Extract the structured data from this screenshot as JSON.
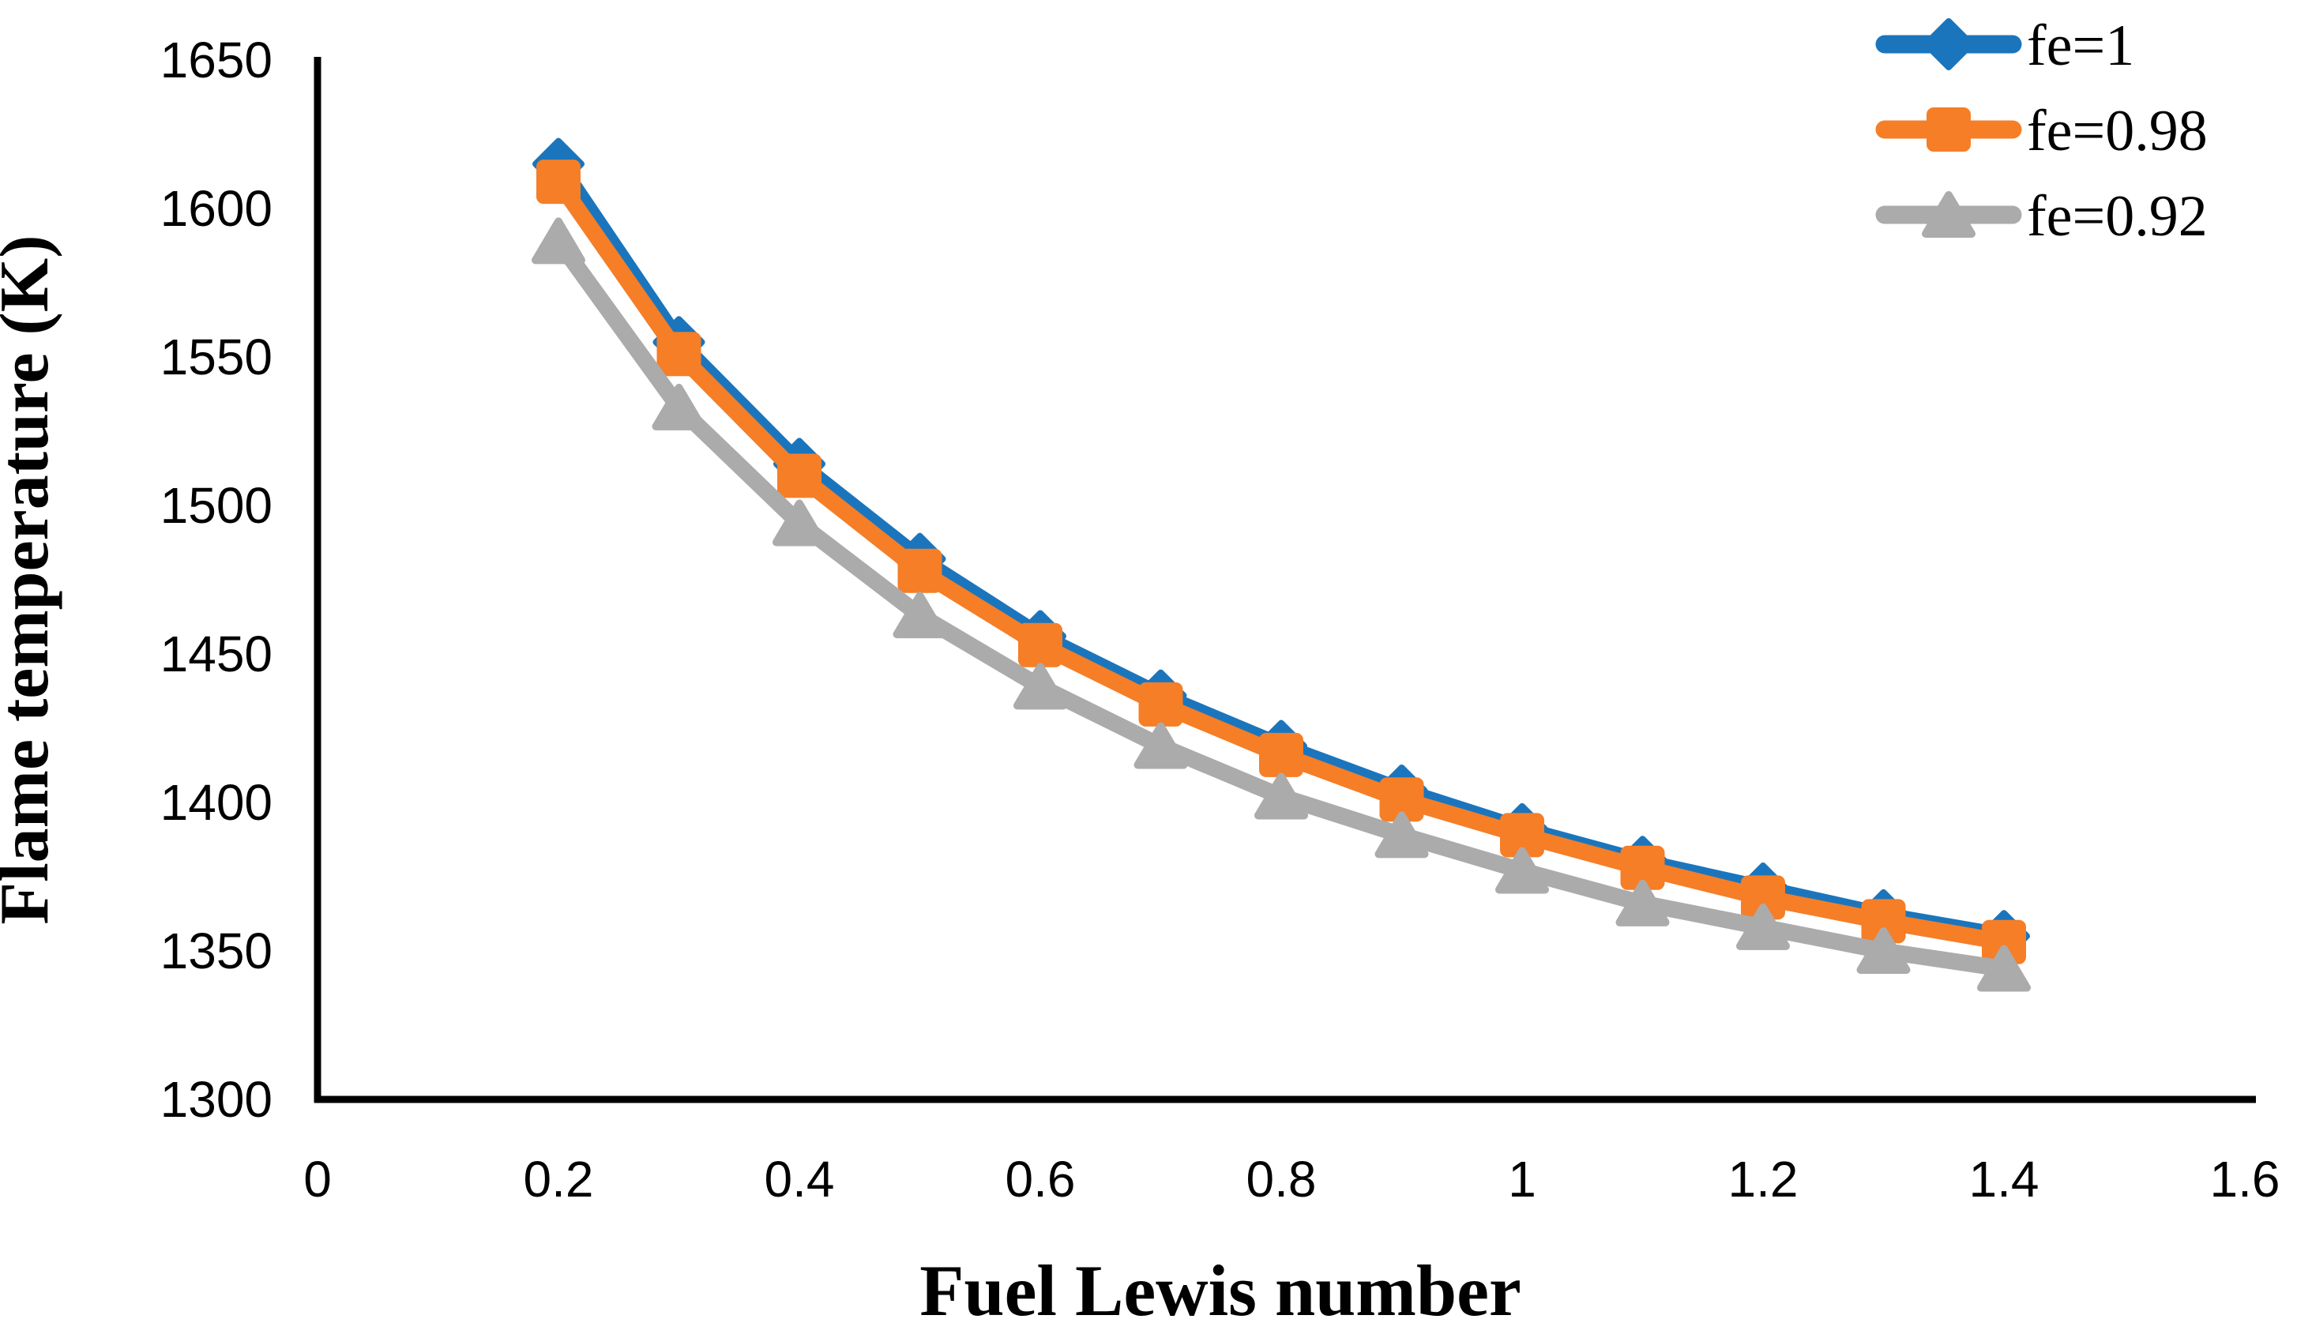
{
  "chart_data": {
    "type": "line",
    "title": "",
    "xlabel": "Fuel Lewis number",
    "ylabel": "Flame temperature (K)",
    "xlim": [
      0,
      1.6
    ],
    "ylim": [
      1300,
      1650
    ],
    "grid": false,
    "legend_position": "top-right",
    "x": [
      0.2,
      0.3,
      0.4,
      0.5,
      0.6,
      0.7,
      0.8,
      0.9,
      1.0,
      1.1,
      1.2,
      1.3,
      1.4
    ],
    "series": [
      {
        "name": "fe=1",
        "color": "#1b75bc",
        "marker": "diamond",
        "values": [
          1615,
          1555,
          1514,
          1482,
          1456,
          1436,
          1419,
          1404,
          1391,
          1380,
          1371,
          1362,
          1355
        ]
      },
      {
        "name": "fe=0.98",
        "color": "#f57e27",
        "marker": "square",
        "values": [
          1609,
          1551,
          1510,
          1478,
          1453,
          1433,
          1416,
          1401,
          1389,
          1378,
          1368,
          1360,
          1353
        ]
      },
      {
        "name": "fe=0.92",
        "color": "#ababab",
        "marker": "triangle",
        "values": [
          1589,
          1533,
          1494,
          1463,
          1439,
          1419,
          1402,
          1389,
          1377,
          1366,
          1358,
          1350,
          1344
        ]
      }
    ],
    "x_ticks": [
      0,
      0.2,
      0.4,
      0.6,
      0.8,
      1,
      1.2,
      1.4,
      1.6
    ],
    "x_tick_labels": [
      "0",
      "0.2",
      "0.4",
      "0.6",
      "0.8",
      "1",
      "1.2",
      "1.4",
      "1.6"
    ],
    "y_ticks": [
      1300,
      1350,
      1400,
      1450,
      1500,
      1550,
      1600,
      1650
    ],
    "y_tick_labels": [
      "1300",
      "1350",
      "1400",
      "1450",
      "1500",
      "1550",
      "1600",
      "1650"
    ],
    "axis_color": "#000000",
    "background_color": "#ffffff"
  }
}
